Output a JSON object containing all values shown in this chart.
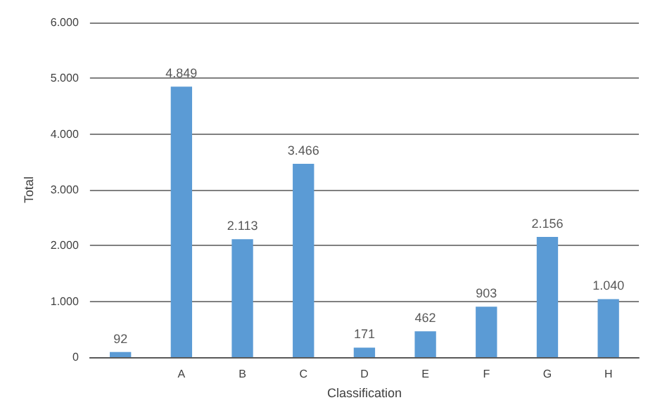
{
  "chart_data": {
    "type": "bar",
    "xlabel": "Classification",
    "ylabel": "Total",
    "categories": [
      null,
      "A",
      "B",
      "C",
      "D",
      "E",
      "F",
      "G",
      "H"
    ],
    "values": [
      92,
      4849,
      2113,
      3466,
      171,
      462,
      903,
      2156,
      1040
    ],
    "value_labels": [
      "92",
      "4.849",
      "2.113",
      "3.466",
      "171",
      "462",
      "903",
      "2.156",
      "1.040"
    ],
    "color": "#5b9bd5",
    "ylim": [
      0,
      6000
    ],
    "yticks": [
      0,
      {
        "value": 1000,
        "label": "1.000"
      },
      {
        "value": 2000,
        "label": "2.000"
      },
      {
        "value": 3000,
        "label": "3.000"
      },
      {
        "value": 4000,
        "label": "4.000"
      },
      {
        "value": 5000,
        "label": "5.000"
      },
      {
        "value": 6000,
        "label": "6.000"
      }
    ],
    "grid": "y"
  }
}
